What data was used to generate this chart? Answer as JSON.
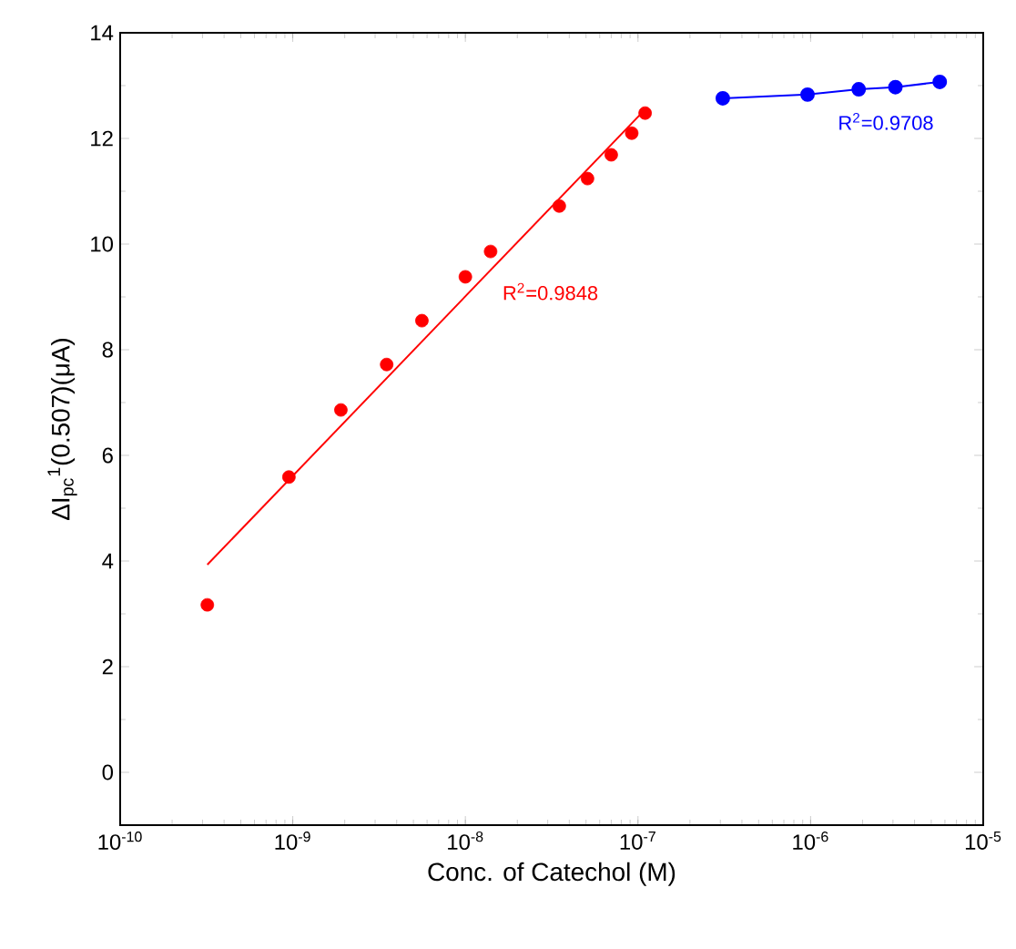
{
  "chart_data": {
    "type": "scatter",
    "xlabel": "Conc. of Catechol (M)",
    "ylabel": "ΔI$_{pc}$$^{1}$(0.507)(μA)",
    "log": "x",
    "xlim": [
      1e-10,
      1e-05
    ],
    "ylim": [
      -1,
      14
    ],
    "xticks": [
      {
        "value": 1e-10,
        "label": "10$^{-10}$"
      },
      {
        "value": 1e-09,
        "label": "10$^{-9}$"
      },
      {
        "value": 1e-08,
        "label": "10$^{-8}$"
      },
      {
        "value": 1e-07,
        "label": "10$^{-7}$"
      },
      {
        "value": 1e-06,
        "label": "10$^{-6}$"
      },
      {
        "value": 1e-05,
        "label": "10$^{-5}$"
      }
    ],
    "yticks": [
      0,
      2,
      4,
      6,
      8,
      10,
      12,
      14
    ],
    "series": [
      {
        "color": "#ff0000",
        "marker": "circle",
        "x": [
          3.2e-10,
          9.5e-10,
          1.9e-09,
          3.5e-09,
          5.6e-09,
          1e-08,
          1.4e-08,
          3.5e-08,
          5.1e-08,
          7e-08,
          9.2e-08,
          1.1e-07
        ],
        "values": [
          3.17,
          5.59,
          6.86,
          7.72,
          8.55,
          9.38,
          9.86,
          10.72,
          11.24,
          11.69,
          12.1,
          12.48
        ]
      },
      {
        "type": "line",
        "color": "#ff0000",
        "marker": "none",
        "line_style": "solid",
        "x": [
          3.2e-10,
          1.1e-07
        ],
        "values": [
          3.93,
          12.55
        ]
      },
      {
        "type": "line",
        "color": "#0000ff",
        "marker": "circle",
        "line_style": "solid",
        "x": [
          3.1e-07,
          9.6e-07,
          1.9e-06,
          3.1e-06,
          5.6e-06
        ],
        "values": [
          12.76,
          12.83,
          12.93,
          12.97,
          13.07
        ]
      }
    ],
    "annotations": [
      "R$^{2}$=0.9848",
      "R$^{2}$=0.9708"
    ]
  }
}
